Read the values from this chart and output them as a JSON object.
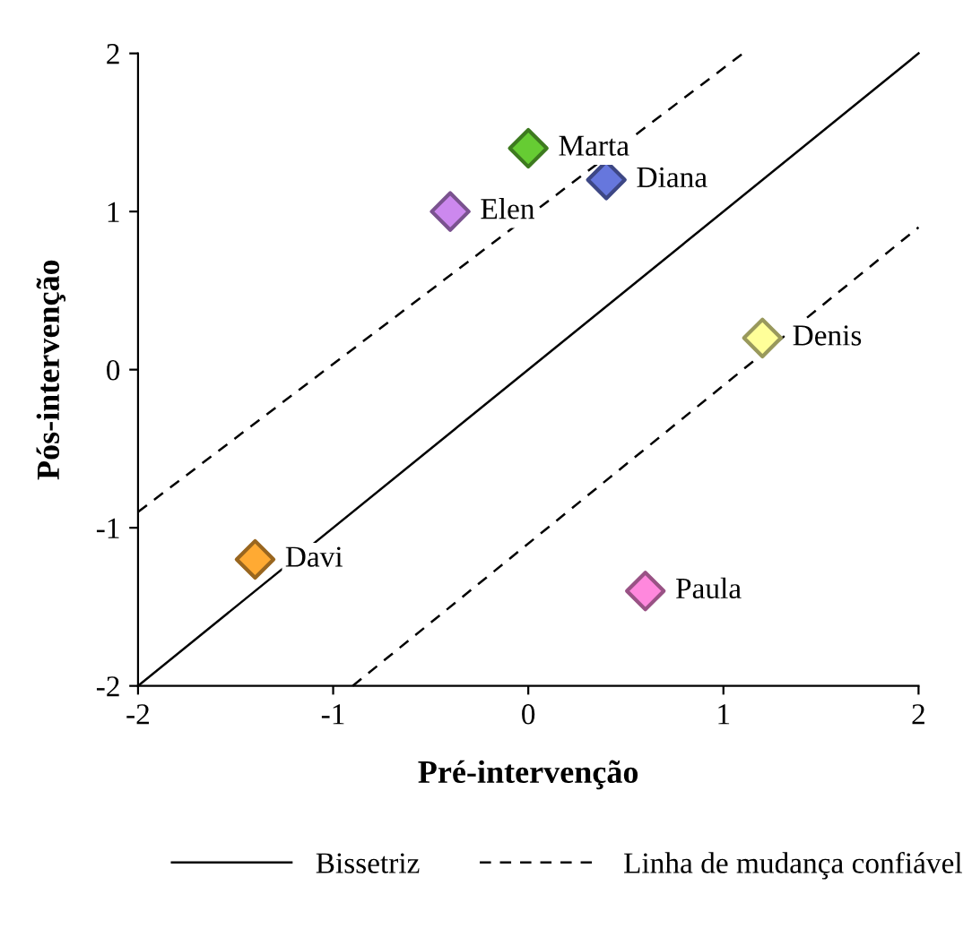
{
  "chart_data": {
    "type": "scatter",
    "xlabel": "Pré-intervenção",
    "ylabel": "Pós-intervenção",
    "xlim": [
      -2,
      2
    ],
    "ylim": [
      -2,
      2
    ],
    "xticks": [
      -2,
      -1,
      0,
      1,
      2
    ],
    "yticks": [
      -2,
      -1,
      0,
      1,
      2
    ],
    "grid": false,
    "legend": "bottom",
    "series": [
      {
        "name": "Marta",
        "marker": "diamond",
        "color": "#66cc33",
        "x": [
          0
        ],
        "values": [
          1.4
        ]
      },
      {
        "name": "Diana",
        "marker": "diamond",
        "color": "#6677dd",
        "x": [
          0.4
        ],
        "values": [
          1.2
        ]
      },
      {
        "name": "Elen",
        "marker": "diamond",
        "color": "#cc88ee",
        "x": [
          -0.4
        ],
        "values": [
          1.0
        ]
      },
      {
        "name": "Denis",
        "marker": "diamond",
        "color": "#ffff99",
        "x": [
          1.2
        ],
        "values": [
          0.2
        ]
      },
      {
        "name": "Davi",
        "marker": "diamond",
        "color": "#ffaa33",
        "x": [
          -1.4
        ],
        "values": [
          -1.2
        ]
      },
      {
        "name": "Paula",
        "marker": "diamond",
        "color": "#ff88dd",
        "x": [
          0.6
        ],
        "values": [
          -1.4
        ]
      },
      {
        "type": "line",
        "name": "Bissetriz",
        "color": "#000000",
        "line_style": "solid",
        "x": [
          -2,
          2
        ],
        "values": [
          -2,
          2
        ]
      },
      {
        "type": "line",
        "name": "Linha de mudança confiável",
        "color": "#000000",
        "line_style": "dashed",
        "x": [
          -0.9,
          2
        ],
        "values": [
          -2,
          0.9
        ]
      },
      {
        "type": "line",
        "color": "#000000",
        "line_style": "dashed",
        "x": [
          -2,
          1.1
        ],
        "values": [
          -0.9,
          2
        ]
      }
    ]
  }
}
